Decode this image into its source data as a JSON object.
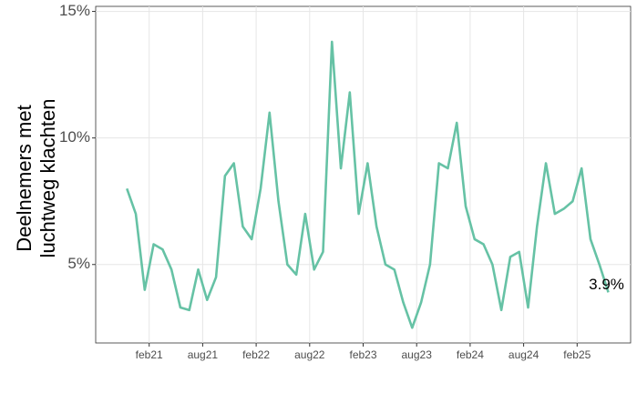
{
  "chart_data": {
    "type": "line",
    "y_label": [
      "Deelnemers met",
      "luchtweg klachten"
    ],
    "x": [
      "2020-11",
      "2020-12",
      "2021-01",
      "2021-02",
      "2021-03",
      "2021-04",
      "2021-05",
      "2021-06",
      "2021-07",
      "2021-08",
      "2021-09",
      "2021-10",
      "2021-11",
      "2021-12",
      "2022-01",
      "2022-02",
      "2022-03",
      "2022-04",
      "2022-05",
      "2022-06",
      "2022-07",
      "2022-08",
      "2022-09",
      "2022-10",
      "2022-11",
      "2022-12",
      "2023-01",
      "2023-02",
      "2023-03",
      "2023-04",
      "2023-05",
      "2023-06",
      "2023-07",
      "2023-08",
      "2023-09",
      "2023-10",
      "2023-11",
      "2023-12",
      "2024-01",
      "2024-02",
      "2024-03",
      "2024-04",
      "2024-05",
      "2024-06",
      "2024-07",
      "2024-08",
      "2024-09",
      "2024-10",
      "2024-11",
      "2024-12",
      "2025-01",
      "2025-02",
      "2025-03",
      "2025-04",
      "2025-05"
    ],
    "series": [
      {
        "color": "#66c2a5",
        "values": [
          8.0,
          7.0,
          4.0,
          5.8,
          5.6,
          4.8,
          3.3,
          3.2,
          4.8,
          3.6,
          4.5,
          8.5,
          9.0,
          6.5,
          6.0,
          8.0,
          11.0,
          7.5,
          5.0,
          4.6,
          7.0,
          4.8,
          5.5,
          13.8,
          8.8,
          11.8,
          7.0,
          9.0,
          6.5,
          5.0,
          4.8,
          3.5,
          2.5,
          3.5,
          5.0,
          9.0,
          8.8,
          10.6,
          7.3,
          6.0,
          5.8,
          5.0,
          3.2,
          5.3,
          5.5,
          3.3,
          6.5,
          9.0,
          7.0,
          7.2,
          7.5,
          8.8,
          6.0,
          5.0,
          3.9
        ],
        "value_labels": [
          null,
          null,
          null,
          null,
          null,
          null,
          null,
          null,
          null,
          null,
          null,
          null,
          null,
          null,
          null,
          null,
          null,
          null,
          null,
          null,
          null,
          null,
          null,
          null,
          null,
          null,
          null,
          null,
          null,
          null,
          null,
          null,
          null,
          null,
          null,
          null,
          null,
          null,
          null,
          null,
          null,
          null,
          null,
          null,
          null,
          null,
          null,
          null,
          null,
          null,
          null,
          null,
          null,
          null,
          "3.9%"
        ]
      }
    ],
    "xlim": [
      "2020-08",
      "2025-08"
    ],
    "xticks": [
      {
        "value": "2021-02",
        "label": "feb21"
      },
      {
        "value": "2021-08",
        "label": "aug21"
      },
      {
        "value": "2022-02",
        "label": "feb22"
      },
      {
        "value": "2022-08",
        "label": "aug22"
      },
      {
        "value": "2023-02",
        "label": "feb23"
      },
      {
        "value": "2023-08",
        "label": "aug23"
      },
      {
        "value": "2024-02",
        "label": "feb24"
      },
      {
        "value": "2024-08",
        "label": "aug24"
      },
      {
        "value": "2025-02",
        "label": "feb25"
      }
    ],
    "ylim": [
      1.9,
      15.2
    ],
    "yticks": [
      {
        "value": 5,
        "label": "5%"
      },
      {
        "value": 10,
        "label": "10%"
      },
      {
        "value": 15,
        "label": "15%"
      }
    ],
    "grid": true
  }
}
